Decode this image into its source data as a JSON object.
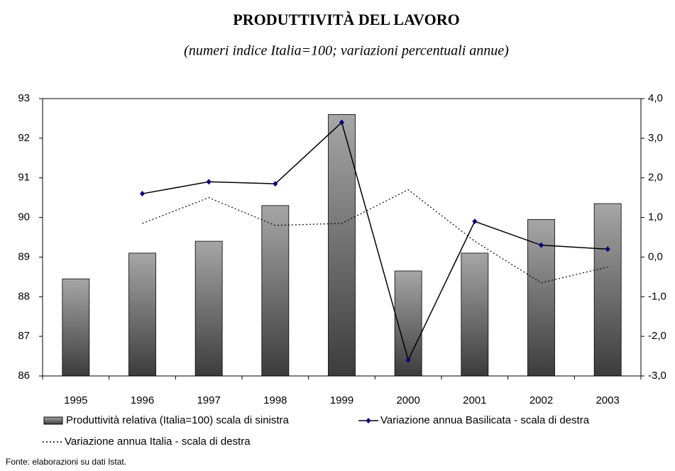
{
  "chart_data": {
    "type": "bar-line",
    "title": "PRODUTTIVITÀ DEL LAVORO",
    "subtitle": "(numeri indice Italia=100; variazioni percentuali annue)",
    "source": "Fonte: elaborazioni su dati Istat.",
    "categories": [
      "1995",
      "1996",
      "1997",
      "1998",
      "1999",
      "2000",
      "2001",
      "2002",
      "2003"
    ],
    "series": [
      {
        "name": "Produttività relativa (Italia=100) scala di sinistra",
        "type": "bar",
        "color": "#a6a6a6",
        "axis": "y",
        "values": [
          88.45,
          89.1,
          89.4,
          90.3,
          92.6,
          88.65,
          89.1,
          89.95,
          90.35
        ]
      },
      {
        "name": "Variazione annua Basilicata - scala di destra",
        "type": "line",
        "color": "#000000",
        "marker_color": "#000080",
        "axis": "y2",
        "values": [
          null,
          1.6,
          1.9,
          1.85,
          3.4,
          -2.6,
          0.9,
          0.3,
          0.2
        ]
      },
      {
        "name": "Variazione annua Italia - scala di destra",
        "type": "line",
        "dashed": true,
        "color": "#000000",
        "axis": "y2",
        "values": [
          null,
          0.85,
          1.5,
          0.8,
          0.85,
          1.7,
          0.4,
          -0.65,
          -0.25
        ]
      }
    ],
    "ylim": [
      86,
      93
    ],
    "yticks": [
      86,
      87,
      88,
      89,
      90,
      91,
      92,
      93
    ],
    "y2lim": [
      -3,
      4
    ],
    "y2ticks": [
      {
        "value": -3,
        "label": "-3,0"
      },
      {
        "value": -2,
        "label": "-2,0"
      },
      {
        "value": -1,
        "label": "-1,0"
      },
      {
        "value": 0,
        "label": "0,0"
      },
      {
        "value": 1,
        "label": "1,0"
      },
      {
        "value": 2,
        "label": "2,0"
      },
      {
        "value": 3,
        "label": "3,0"
      },
      {
        "value": 4,
        "label": "4,0"
      }
    ],
    "grid": false,
    "legend": "bottom"
  }
}
